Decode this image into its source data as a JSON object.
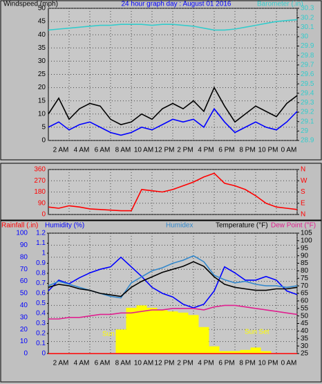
{
  "chart_data": [
    {
      "type": "line",
      "title": "24 hour graph day : August 01 2016",
      "ylabel": "Windspeed (mph)",
      "y2label": "Barometer (.in)",
      "xlim": [
        0,
        24
      ],
      "xticks": [
        {
          "value": 2,
          "label": "2 AM"
        },
        {
          "value": 4,
          "label": "4 AM"
        },
        {
          "value": 6,
          "label": "6 AM"
        },
        {
          "value": 8,
          "label": "8 AM"
        },
        {
          "value": 10,
          "label": "10 AM"
        },
        {
          "value": 12,
          "label": "12 PM"
        },
        {
          "value": 14,
          "label": "2 PM"
        },
        {
          "value": 16,
          "label": "4 PM"
        },
        {
          "value": 18,
          "label": "6 PM"
        },
        {
          "value": 20,
          "label": "8 PM"
        },
        {
          "value": 22,
          "label": "10 PM"
        },
        {
          "value": 24,
          "label": "0 AM"
        }
      ],
      "ylim": [
        0,
        50
      ],
      "yticks": [
        0,
        5,
        10,
        15,
        20,
        25,
        30,
        35,
        40,
        45,
        50
      ],
      "y2lim": [
        28.9,
        30.3
      ],
      "y2ticks": [
        28.9,
        29,
        29.1,
        29.2,
        29.3,
        29.4,
        29.5,
        29.6,
        29.7,
        29.8,
        29.9,
        30,
        30.1,
        30.2,
        30.3
      ],
      "grid": true,
      "x": [
        0,
        1,
        2,
        3,
        4,
        5,
        6,
        7,
        8,
        9,
        10,
        11,
        12,
        13,
        14,
        15,
        16,
        17,
        18,
        19,
        20,
        21,
        22,
        23,
        24
      ],
      "series": [
        {
          "color": "#000000",
          "values": [
            10,
            16,
            8,
            12,
            14,
            13,
            8,
            6,
            7,
            10,
            8,
            12,
            14,
            12,
            15,
            11,
            20,
            13,
            7,
            10,
            13,
            11,
            9,
            14,
            17
          ]
        },
        {
          "color": "#0000ff",
          "values": [
            5,
            7,
            4,
            6,
            7,
            5,
            3,
            2,
            3,
            5,
            4,
            6,
            8,
            7,
            8,
            5,
            12,
            7,
            3,
            5,
            7,
            5,
            4,
            7,
            11
          ]
        },
        {
          "color": "#33cccc",
          "axis": "y2",
          "values": [
            30.07,
            30.08,
            30.09,
            30.1,
            30.11,
            30.12,
            30.12,
            30.13,
            30.13,
            30.13,
            30.12,
            30.13,
            30.13,
            30.12,
            30.11,
            30.09,
            30.07,
            30.07,
            30.08,
            30.1,
            30.12,
            30.14,
            30.16,
            30.17,
            30.18
          ]
        }
      ]
    },
    {
      "type": "line",
      "xlim": [
        0,
        24
      ],
      "ylim": [
        0,
        360
      ],
      "yticks": [
        0,
        90,
        180,
        270,
        360
      ],
      "y2lim": [
        0,
        360
      ],
      "y2ticks": [
        {
          "value": 0,
          "label": "N"
        },
        {
          "value": 90,
          "label": "E"
        },
        {
          "value": 180,
          "label": "S"
        },
        {
          "value": 270,
          "label": "W"
        },
        {
          "value": 360,
          "label": "N"
        }
      ],
      "grid": true,
      "x": [
        0,
        1,
        2,
        3,
        4,
        5,
        6,
        7,
        8,
        9,
        10,
        11,
        12,
        13,
        14,
        15,
        16,
        17,
        18,
        19,
        20,
        21,
        22,
        23,
        24
      ],
      "series": [
        {
          "color": "#ff0000",
          "values": [
            60,
            50,
            70,
            60,
            45,
            40,
            35,
            30,
            30,
            200,
            190,
            180,
            200,
            230,
            260,
            300,
            330,
            250,
            230,
            200,
            150,
            90,
            60,
            50,
            40
          ]
        }
      ]
    },
    {
      "type": "line",
      "xlim": [
        0,
        24
      ],
      "xticks": [
        {
          "value": 2,
          "label": "2 AM"
        },
        {
          "value": 4,
          "label": "4 AM"
        },
        {
          "value": 6,
          "label": "6 AM"
        },
        {
          "value": 8,
          "label": "8 AM"
        },
        {
          "value": 10,
          "label": "10 AM"
        },
        {
          "value": 12,
          "label": "12 PM"
        },
        {
          "value": 14,
          "label": "2 PM"
        },
        {
          "value": 16,
          "label": "4 PM"
        },
        {
          "value": 18,
          "label": "6 PM"
        },
        {
          "value": 20,
          "label": "8 PM"
        },
        {
          "value": 22,
          "label": "10 PM"
        },
        {
          "value": 24,
          "label": "0 AM"
        }
      ],
      "ylim": [
        0,
        100
      ],
      "yticks": [
        0,
        10,
        20,
        30,
        40,
        50,
        60,
        70,
        80,
        90,
        100
      ],
      "y3lim": [
        0,
        1.2
      ],
      "y3ticks": [
        0,
        0.1,
        0.2,
        0.3,
        0.4,
        0.5,
        0.6,
        0.7,
        0.8,
        0.9,
        1,
        1.1,
        1.2
      ],
      "y2lim": [
        25,
        105
      ],
      "y2ticks": [
        25,
        30,
        35,
        40,
        45,
        50,
        55,
        60,
        65,
        70,
        75,
        80,
        85,
        90,
        95,
        100,
        105
      ],
      "grid": true,
      "annotations": [
        "Sun Rise",
        "Sun Set"
      ],
      "x": [
        0,
        1,
        2,
        3,
        4,
        5,
        6,
        7,
        8,
        9,
        10,
        11,
        12,
        13,
        14,
        15,
        16,
        17,
        18,
        19,
        20,
        21,
        22,
        23,
        24
      ],
      "series": [
        {
          "name": "Rainfall (.in)",
          "color": "#ff0000",
          "axis": "y3",
          "values": [
            0,
            0,
            0,
            0,
            0,
            0,
            0,
            0,
            0,
            0,
            0,
            0,
            0,
            0,
            0,
            0,
            0,
            0,
            0,
            0,
            0,
            0,
            0,
            0,
            0
          ]
        },
        {
          "name": "Humidity (%)",
          "color": "#0000ff",
          "values": [
            52,
            61,
            58,
            63,
            67,
            70,
            72,
            80,
            72,
            64,
            55,
            50,
            47,
            41,
            38,
            41,
            52,
            72,
            67,
            61,
            61,
            64,
            61,
            52,
            49
          ]
        },
        {
          "name": "Humidex",
          "color": "#3388cc",
          "axis": "y2",
          "values": [
            70,
            73,
            71,
            69,
            67,
            65,
            63,
            62,
            72,
            76,
            80,
            82,
            85,
            87,
            90,
            86,
            77,
            74,
            72,
            73,
            71,
            70,
            70,
            69,
            70
          ]
        },
        {
          "name": "Temperature (°F)",
          "color": "#000000",
          "axis": "y2",
          "values": [
            69,
            71,
            70,
            68,
            67,
            65,
            64,
            63,
            69,
            73,
            76,
            79,
            81,
            83,
            86,
            83,
            76,
            71,
            69,
            68,
            67,
            67,
            68,
            68,
            69
          ]
        },
        {
          "name": "Dew Point (°F)",
          "color": "#e0208f",
          "axis": "y2",
          "values": [
            48,
            48,
            49,
            49,
            50,
            51,
            51,
            52,
            52,
            53,
            54,
            54,
            55,
            55,
            55,
            54,
            56,
            57,
            57,
            56,
            55,
            54,
            53,
            52,
            51
          ]
        },
        {
          "color": "#ffff00",
          "style": "bars",
          "values": [
            0,
            0,
            0,
            0,
            0,
            0,
            0,
            20,
            38,
            40,
            38,
            36,
            35,
            34,
            32,
            22,
            6,
            2,
            2,
            3,
            5,
            2,
            0,
            0,
            0
          ]
        }
      ]
    }
  ]
}
